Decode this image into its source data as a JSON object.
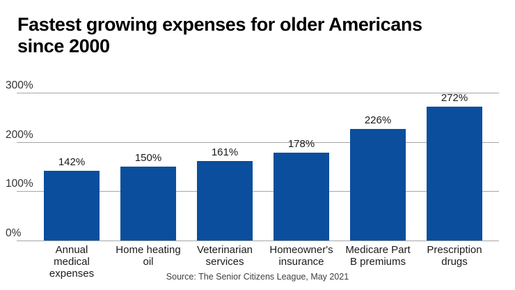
{
  "title": "Fastest growing expenses for older Americans since 2000",
  "title_lines": [
    "Fastest growing expenses for older Americans",
    "since 2000"
  ],
  "source": "Source: The Senior Citizens League, May 2021",
  "colors": {
    "bar": "#0a4e9d",
    "gridline": "#a6a6a6",
    "title_text": "#000000",
    "tick_text": "#333333",
    "value_text": "#1a1a1a",
    "category_text": "#1a1a1a",
    "source_text": "#404040",
    "background": "#ffffff"
  },
  "chart_data": {
    "type": "bar",
    "title": "Fastest growing expenses for older Americans since 2000",
    "categories": [
      "Annual medical expenses",
      "Home heating oil",
      "Veterinarian services",
      "Homeowner's insurance",
      "Medicare Part B premiums",
      "Prescription drugs"
    ],
    "category_label_lines": [
      [
        "Annual",
        "medical",
        "expenses"
      ],
      [
        "Home heating",
        "oil"
      ],
      [
        "Veterinarian",
        "services"
      ],
      [
        "Homeowner's",
        "insurance"
      ],
      [
        "Medicare Part",
        "B premiums"
      ],
      [
        "Prescription",
        "drugs"
      ]
    ],
    "values": [
      142,
      150,
      161,
      178,
      226,
      272
    ],
    "value_labels": [
      "142%",
      "150%",
      "161%",
      "178%",
      "226%",
      "272%"
    ],
    "xlabel": "",
    "ylabel": "",
    "ylim": [
      0,
      300
    ],
    "yticks": [
      0,
      100,
      200,
      300
    ],
    "ytick_labels": [
      "0%",
      "100%",
      "200%",
      "300%"
    ],
    "grid": true,
    "legend": false,
    "source": "Source: The Senior Citizens League, May 2021"
  }
}
